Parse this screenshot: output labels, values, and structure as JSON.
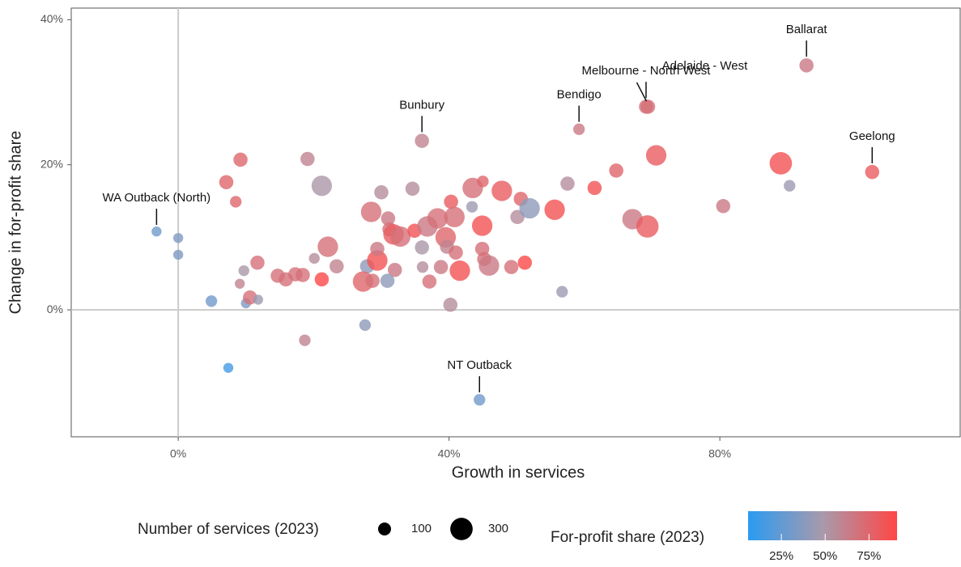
{
  "chart_data": {
    "type": "scatter",
    "x_label": "Growth in services",
    "y_label": "Change in for-profit share",
    "xlim": [
      -15.8,
      115.5
    ],
    "ylim": [
      -17.5,
      41.6
    ],
    "xticks": [
      {
        "value": 0,
        "label": "0%"
      },
      {
        "value": 40,
        "label": "40%"
      },
      {
        "value": 80,
        "label": "80%"
      }
    ],
    "yticks": [
      {
        "value": 0,
        "label": "0%"
      },
      {
        "value": 20,
        "label": "20%"
      },
      {
        "value": 40,
        "label": "40%"
      }
    ],
    "x": [
      -3.2,
      0,
      0,
      4.9,
      7.4,
      7.1,
      9.2,
      8.5,
      9.1,
      9.7,
      10.0,
      10.6,
      11.8,
      11.7,
      19.1,
      21.2,
      18.7,
      14.7,
      15.9,
      17.3,
      18.4,
      20.1,
      21.2,
      22.1,
      23.4,
      27.6,
      27.9,
      28.5,
      27.3,
      28.7,
      29.4,
      29.4,
      30.0,
      31.0,
      31.2,
      31.8,
      32.8,
      32.0,
      30.9,
      34.6,
      34.9,
      36.0,
      36.0,
      36.1,
      37.1,
      36.8,
      38.3,
      38.8,
      39.5,
      39.7,
      40.2,
      40.3,
      40.8,
      41.0,
      41.6,
      43.5,
      43.4,
      45.0,
      44.9,
      44.9,
      45.2,
      45.9,
      44.5,
      47.8,
      49.2,
      50.6,
      50.1,
      51.9,
      51.2,
      55.6,
      56.7,
      57.5,
      59.2,
      61.5,
      64.7,
      67.1,
      69.3,
      69.1,
      69.4,
      70.6,
      80.5,
      89.0,
      90.3,
      92.8,
      102.5
    ],
    "y": [
      10.8,
      9.9,
      7.6,
      1.2,
      -8.0,
      17.6,
      20.7,
      14.9,
      3.6,
      5.4,
      0.9,
      1.7,
      1.4,
      6.5,
      20.8,
      17.1,
      -4.2,
      4.7,
      4.2,
      4.9,
      4.8,
      7.1,
      4.2,
      8.7,
      6.0,
      -2.1,
      6.0,
      13.5,
      3.9,
      4.0,
      6.8,
      8.4,
      16.2,
      12.6,
      11.1,
      10.4,
      10.1,
      5.5,
      4.0,
      16.7,
      10.9,
      23.3,
      8.6,
      5.9,
      3.9,
      11.5,
      12.6,
      5.9,
      10.0,
      8.7,
      0.7,
      14.9,
      12.8,
      7.9,
      5.4,
      16.8,
      14.2,
      17.7,
      11.6,
      8.4,
      7.0,
      6.1,
      -12.4,
      16.4,
      5.9,
      15.3,
      12.8,
      14.0,
      6.5,
      13.8,
      2.5,
      17.4,
      24.9,
      16.8,
      19.2,
      12.5,
      11.5,
      28.0,
      28.0,
      21.3,
      14.3,
      20.2,
      17.1,
      33.7,
      19.0
    ],
    "sizes": [
      60,
      60,
      60,
      80,
      60,
      120,
      120,
      80,
      60,
      70,
      60,
      120,
      60,
      120,
      120,
      250,
      80,
      120,
      120,
      120,
      120,
      70,
      120,
      250,
      120,
      80,
      120,
      250,
      250,
      120,
      250,
      120,
      120,
      120,
      120,
      250,
      250,
      120,
      120,
      120,
      120,
      120,
      120,
      80,
      120,
      250,
      250,
      120,
      250,
      120,
      120,
      120,
      250,
      120,
      250,
      250,
      80,
      80,
      250,
      120,
      120,
      250,
      80,
      250,
      120,
      120,
      120,
      250,
      120,
      250,
      80,
      120,
      80,
      120,
      120,
      250,
      300,
      120,
      120,
      250,
      120,
      300,
      80,
      120,
      120
    ],
    "shares": [
      30,
      35,
      35,
      30,
      15,
      75,
      75,
      75,
      60,
      50,
      35,
      70,
      45,
      70,
      60,
      50,
      60,
      70,
      70,
      70,
      70,
      55,
      90,
      70,
      60,
      40,
      40,
      70,
      75,
      70,
      85,
      65,
      55,
      65,
      70,
      80,
      70,
      65,
      40,
      55,
      85,
      60,
      50,
      55,
      70,
      65,
      70,
      65,
      75,
      60,
      55,
      80,
      70,
      70,
      85,
      70,
      45,
      75,
      85,
      70,
      70,
      65,
      30,
      80,
      70,
      75,
      55,
      40,
      90,
      85,
      45,
      55,
      65,
      85,
      75,
      65,
      80,
      70,
      70,
      80,
      65,
      85,
      45,
      65,
      80
    ],
    "labels": [
      "WA Outback (North)",
      null,
      null,
      null,
      null,
      null,
      null,
      null,
      null,
      null,
      null,
      null,
      null,
      null,
      null,
      null,
      null,
      null,
      null,
      null,
      null,
      null,
      null,
      null,
      null,
      null,
      null,
      null,
      null,
      null,
      null,
      null,
      null,
      null,
      null,
      null,
      null,
      null,
      null,
      null,
      null,
      "Bunbury",
      null,
      null,
      null,
      null,
      null,
      null,
      null,
      null,
      null,
      null,
      null,
      null,
      null,
      null,
      null,
      null,
      null,
      null,
      null,
      null,
      "NT Outback",
      null,
      null,
      null,
      null,
      null,
      null,
      null,
      null,
      null,
      "Bendigo",
      null,
      null,
      null,
      null,
      "Melbourne - North West",
      "Adelaide - West",
      null,
      null,
      null,
      null,
      "Ballarat",
      "Geelong"
    ],
    "size_legend": {
      "title": "Number of services (2023)",
      "values": [
        100,
        300
      ]
    },
    "color_legend": {
      "title": "For-profit share (2023)",
      "colorlim": [
        6,
        91
      ],
      "colors": [
        "#2a9bf2",
        "#a89aab",
        "#ff4646"
      ],
      "ticks": [
        {
          "value": 25,
          "label": "25%"
        },
        {
          "value": 50,
          "label": "50%"
        },
        {
          "value": 75,
          "label": "75%"
        }
      ]
    }
  }
}
